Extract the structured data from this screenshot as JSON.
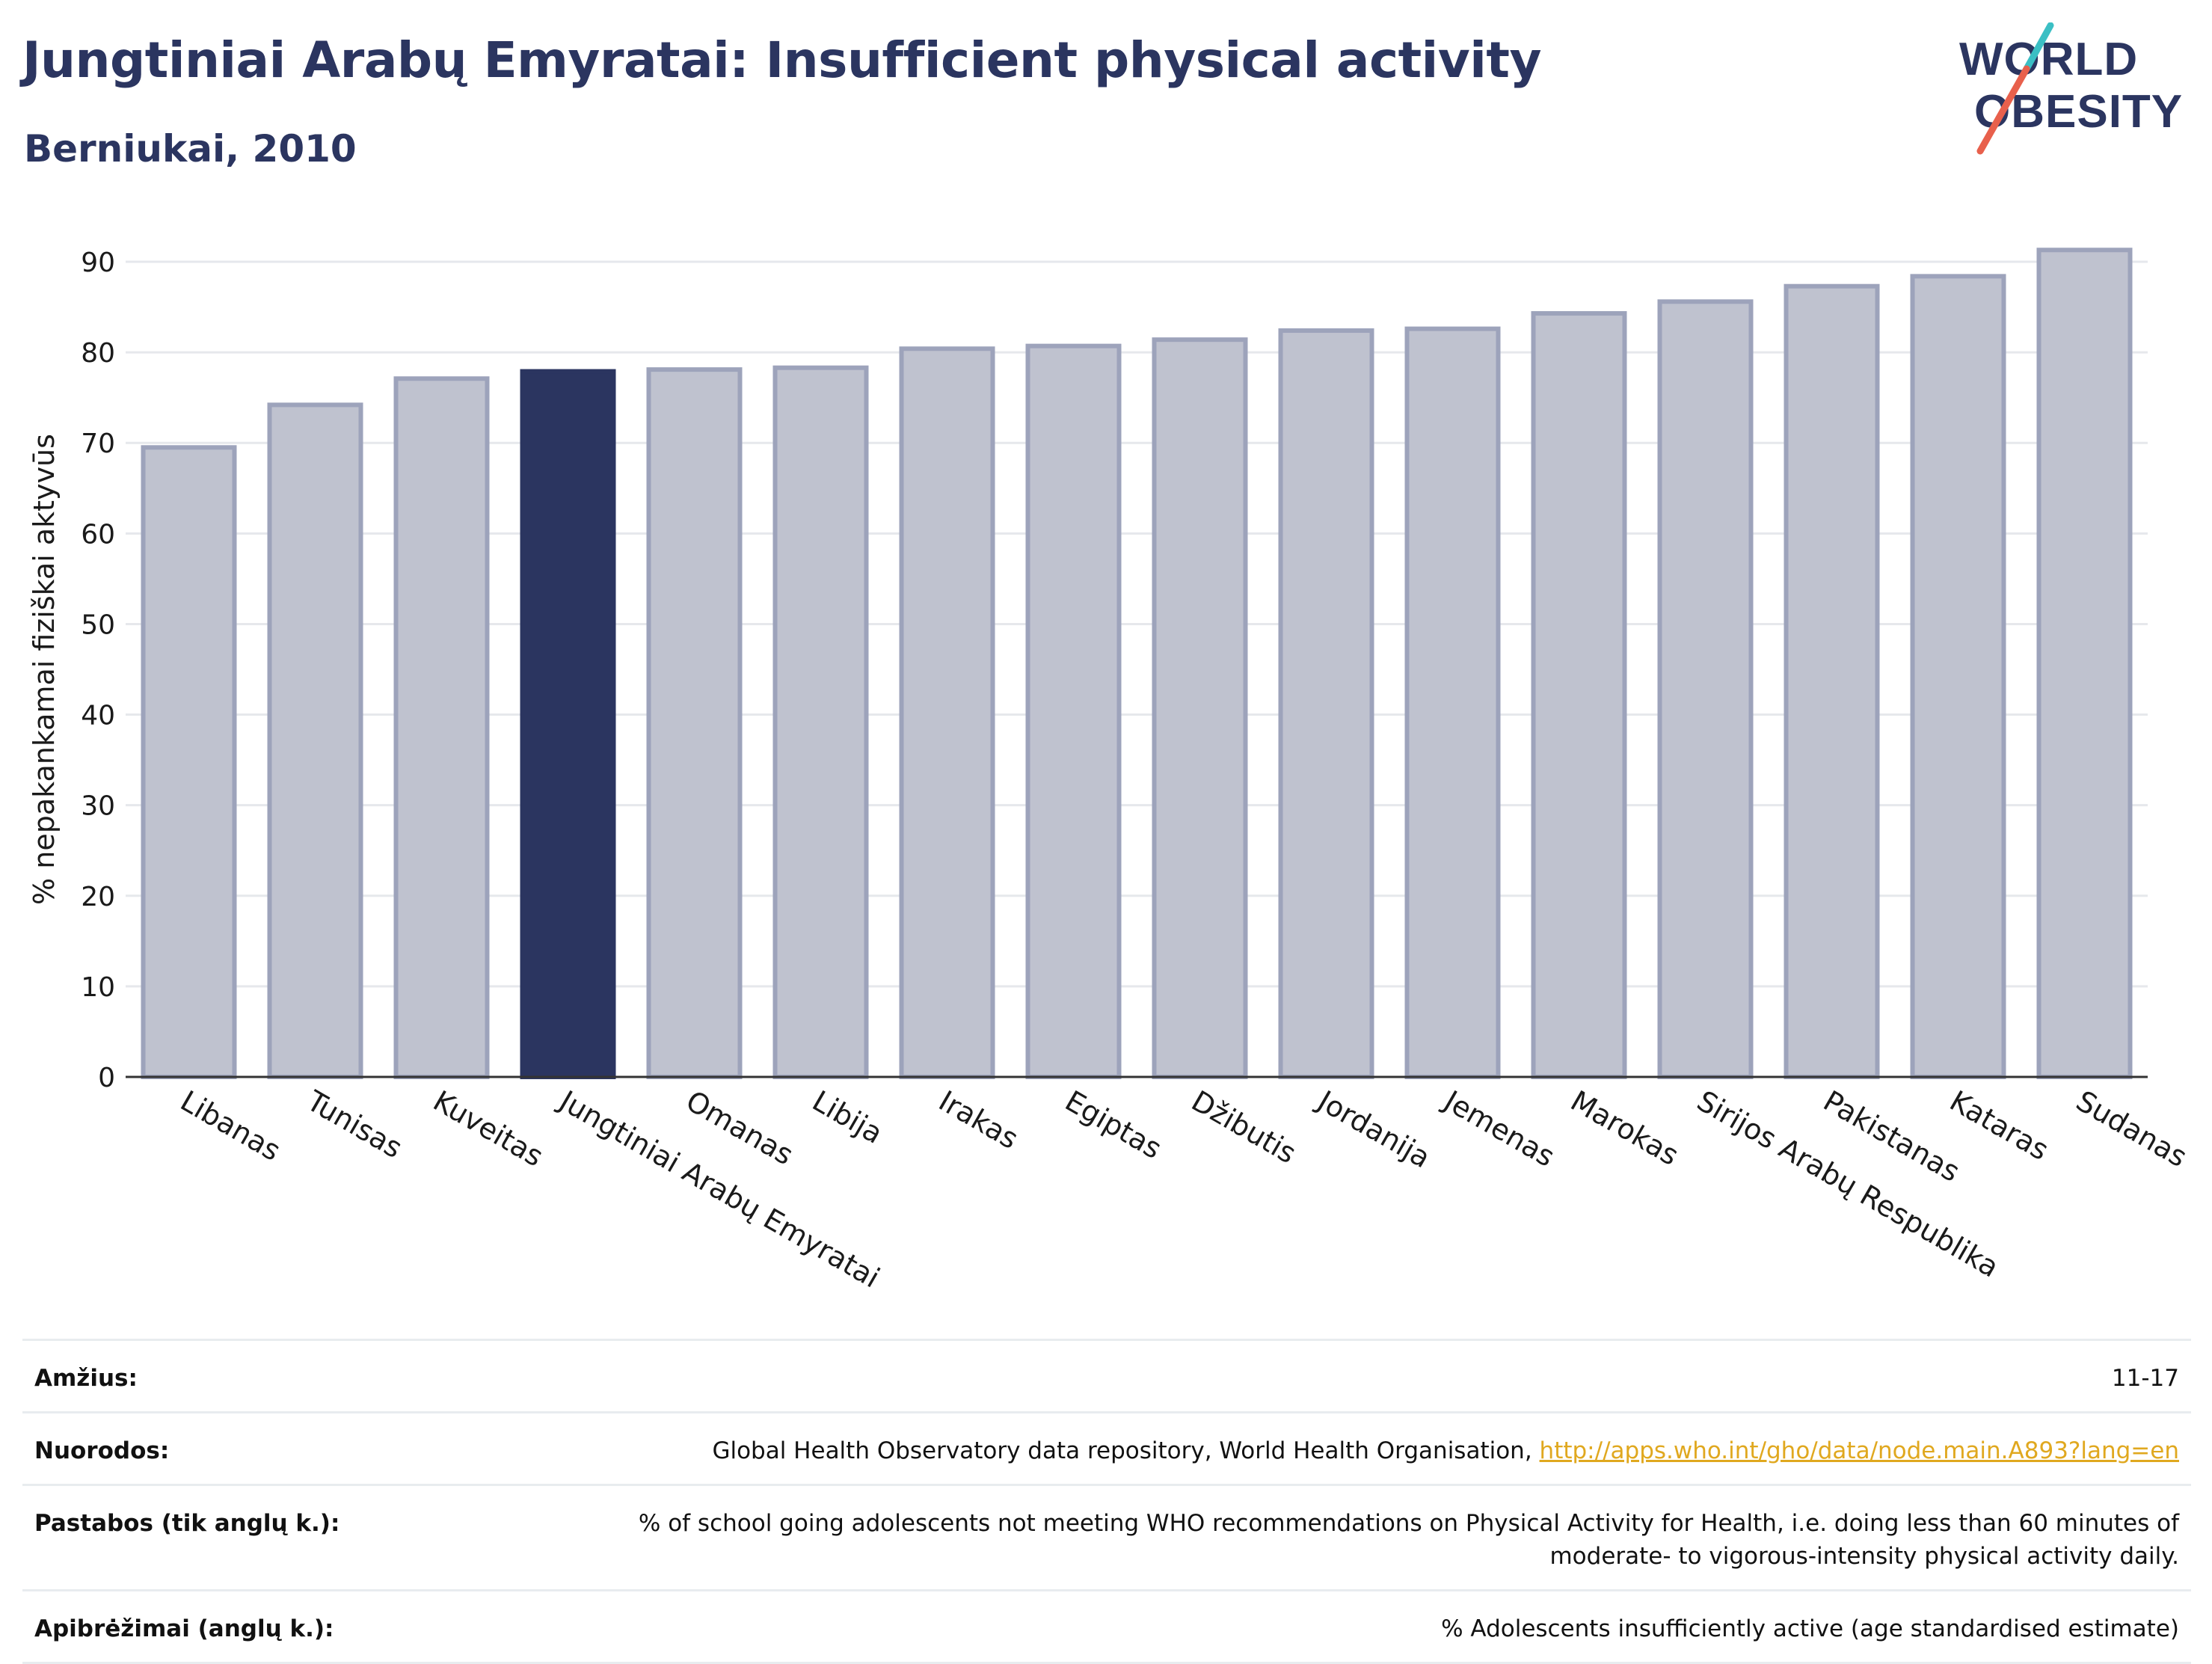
{
  "header": {
    "title": "Jungtiniai Arabų Emyratai: Insufficient physical activity",
    "subtitle": "Berniukai, 2010"
  },
  "logo": {
    "line1": "WORLD",
    "line2": "OBESITY",
    "colors": {
      "text": "#2b3560",
      "slash_red": "#e8604c",
      "slash_teal": "#3bbfc4"
    }
  },
  "chart_data": {
    "type": "bar",
    "ylabel": "% nepakankamai fiziškai aktyvūs",
    "xlabel": "",
    "ylim": [
      0,
      90
    ],
    "yticks": [
      0,
      10,
      20,
      30,
      40,
      50,
      60,
      70,
      80,
      90
    ],
    "grid": true,
    "highlight_category": "Jungtiniai Arabų Emyratai",
    "colors": {
      "default_fill": "#bfc2cf",
      "default_stroke": "#9da3bb",
      "highlight": "#2b3560",
      "grid": "#e6e8ec",
      "axis": "#333333"
    },
    "categories": [
      "Libanas",
      "Tunisas",
      "Kuveitas",
      "Jungtiniai Arabų Emyratai",
      "Omanas",
      "Libija",
      "Irakas",
      "Egiptas",
      "Džibutis",
      "Jordanija",
      "Jemenas",
      "Marokas",
      "Sirijos Arabų Respublika",
      "Pakistanas",
      "Kataras",
      "Sudanas"
    ],
    "values": [
      69.5,
      74.2,
      77.1,
      77.9,
      78.1,
      78.3,
      80.4,
      80.7,
      81.4,
      82.4,
      82.6,
      84.3,
      85.6,
      87.3,
      88.4,
      91.3
    ]
  },
  "meta": {
    "rows": [
      {
        "label": "Amžius:",
        "value": "11-17"
      },
      {
        "label": "Nuorodos:",
        "value": "Global Health Observatory data repository, World Health Organisation, ",
        "link": "http://apps.who.int/gho/data/node.main.A893?lang=en"
      },
      {
        "label": "Pastabos (tik anglų k.):",
        "value": "% of school going adolescents not meeting WHO recommendations on Physical Activity for Health, i.e. doing less than 60 minutes of moderate- to vigorous-intensity physical activity daily."
      },
      {
        "label": "Apibrėžimai (anglų k.):",
        "value": "% Adolescents insufficiently active (age standardised estimate)"
      }
    ]
  }
}
